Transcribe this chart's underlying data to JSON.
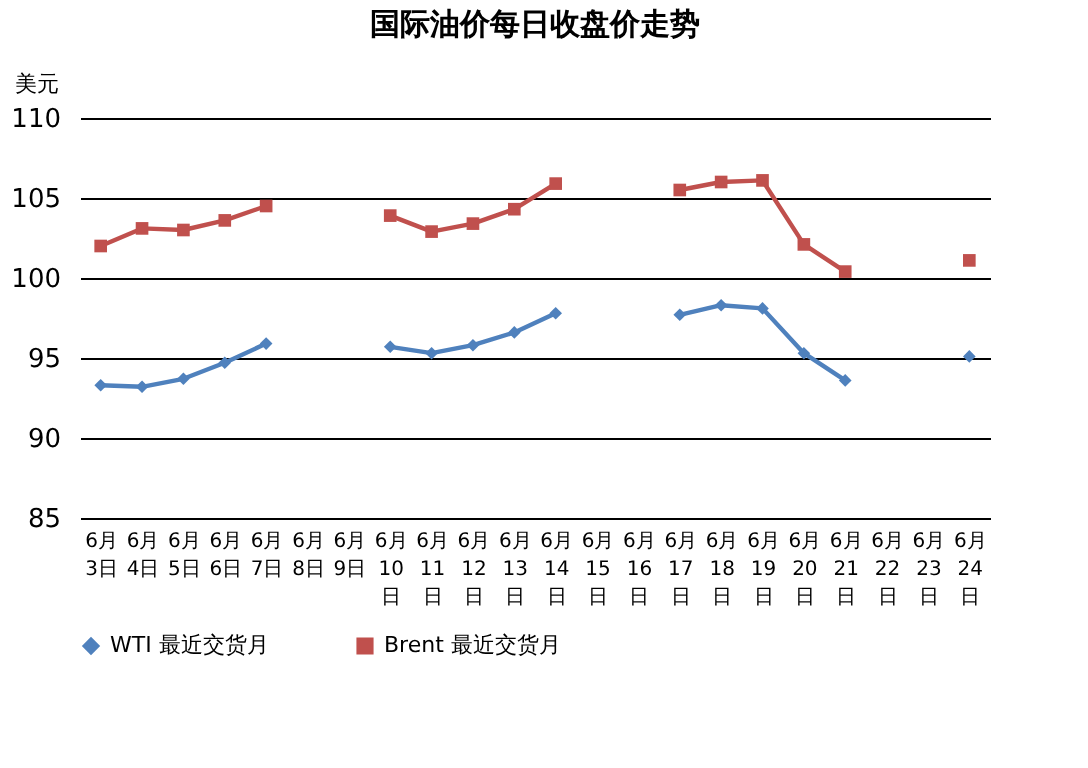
{
  "chart_data": {
    "type": "line",
    "title": "国际油价每日收盘价走势",
    "ylabel": "美元",
    "categories": [
      "6月3日",
      "6月4日",
      "6月5日",
      "6月6日",
      "6月7日",
      "6月8日",
      "6月9日",
      "6月10日",
      "6月11日",
      "6月12日",
      "6月13日",
      "6月14日",
      "6月15日",
      "6月16日",
      "6月17日",
      "6月18日",
      "6月19日",
      "6月20日",
      "6月21日",
      "6月22日",
      "6月23日",
      "6月24日"
    ],
    "series": [
      {
        "name": "WTI 最近交货月",
        "color": "#4f81bd",
        "marker": "diamond",
        "values": [
          93.3,
          93.2,
          93.7,
          94.7,
          95.9,
          null,
          null,
          95.7,
          95.3,
          95.8,
          96.6,
          97.8,
          null,
          null,
          97.7,
          98.3,
          98.1,
          95.3,
          93.6,
          null,
          null,
          95.1
        ]
      },
      {
        "name": "Brent 最近交货月",
        "color": "#c0504d",
        "marker": "square",
        "values": [
          102.0,
          103.1,
          103.0,
          103.6,
          104.5,
          null,
          null,
          103.9,
          102.9,
          103.4,
          104.3,
          105.9,
          null,
          null,
          105.5,
          106.0,
          106.1,
          102.1,
          100.4,
          null,
          null,
          101.1
        ]
      }
    ],
    "ylim": [
      85,
      110
    ],
    "yticks": [
      85,
      90,
      95,
      100,
      105,
      110
    ],
    "grid": "y",
    "legend": "bottom",
    "line_style": "solid"
  }
}
